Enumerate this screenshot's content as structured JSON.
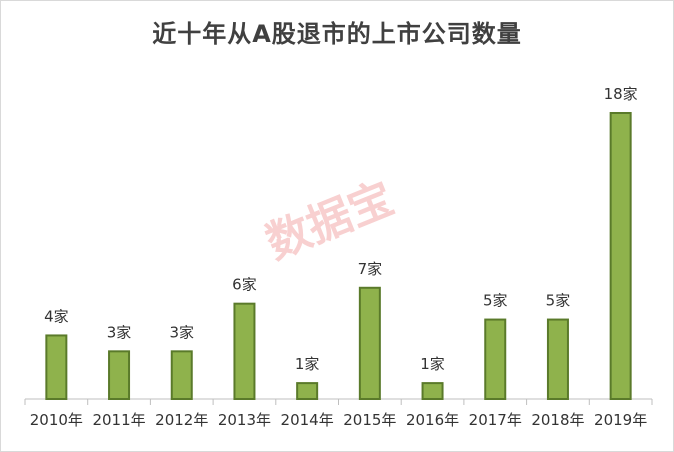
{
  "chart_data": {
    "type": "bar",
    "title": "近十年从A股退市的上市公司数量",
    "categories": [
      "2010年",
      "2011年",
      "2012年",
      "2013年",
      "2014年",
      "2015年",
      "2016年",
      "2017年",
      "2018年",
      "2019年"
    ],
    "values": [
      4,
      3,
      3,
      6,
      1,
      7,
      1,
      5,
      5,
      18
    ],
    "data_labels": [
      "4家",
      "3家",
      "3家",
      "6家",
      "1家",
      "7家",
      "1家",
      "5家",
      "5家",
      "18家"
    ],
    "xlabel": "",
    "ylabel": "",
    "ylim": [
      0,
      18
    ],
    "grid": false,
    "legend": "none",
    "bar_color": "#8fb24c",
    "bar_edge_color": "#5a7a2a"
  },
  "watermark": "数据宝"
}
